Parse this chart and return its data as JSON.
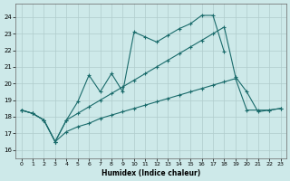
{
  "xlabel": "Humidex (Indice chaleur)",
  "xlim": [
    -0.5,
    23.5
  ],
  "ylim": [
    15.5,
    24.8
  ],
  "yticks": [
    16,
    17,
    18,
    19,
    20,
    21,
    22,
    23,
    24
  ],
  "xticks": [
    0,
    1,
    2,
    3,
    4,
    5,
    6,
    7,
    8,
    9,
    10,
    11,
    12,
    13,
    14,
    15,
    16,
    17,
    18,
    19,
    20,
    21,
    22,
    23
  ],
  "background_color": "#cde9e9",
  "grid_color": "#b0cccc",
  "line_color": "#1a6b6b",
  "line1_x": [
    0,
    1,
    2,
    3,
    4,
    5,
    6,
    7,
    8,
    9,
    10,
    11,
    12,
    13,
    14,
    15,
    16,
    17,
    18
  ],
  "line1_y": [
    18.4,
    18.2,
    17.8,
    16.5,
    17.8,
    18.9,
    20.5,
    19.5,
    20.6,
    19.5,
    23.1,
    22.8,
    22.5,
    22.9,
    23.3,
    23.6,
    24.1,
    24.1,
    21.9
  ],
  "line2_x": [
    0,
    1,
    2,
    3,
    4,
    5,
    6,
    7,
    8,
    9,
    10,
    11,
    12,
    13,
    14,
    15,
    16,
    17,
    18,
    19,
    20,
    21,
    22,
    23
  ],
  "line2_y": [
    18.4,
    18.2,
    17.8,
    16.5,
    17.8,
    18.2,
    18.6,
    19.0,
    19.4,
    19.8,
    20.2,
    20.6,
    21.0,
    21.4,
    21.8,
    22.2,
    22.6,
    23.0,
    23.4,
    20.4,
    19.5,
    18.3,
    18.4,
    18.5
  ],
  "line3_x": [
    0,
    1,
    2,
    3,
    4,
    5,
    6,
    7,
    8,
    9,
    10,
    11,
    12,
    13,
    14,
    15,
    16,
    17,
    18,
    19,
    20,
    21,
    22,
    23
  ],
  "line3_y": [
    18.4,
    18.2,
    17.8,
    16.5,
    17.1,
    17.4,
    17.6,
    17.9,
    18.1,
    18.3,
    18.5,
    18.7,
    18.9,
    19.1,
    19.3,
    19.5,
    19.7,
    19.9,
    20.1,
    20.3,
    18.4,
    18.4,
    18.4,
    18.5
  ]
}
